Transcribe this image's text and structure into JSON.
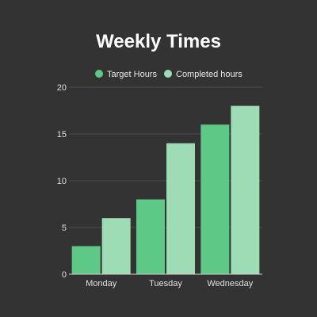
{
  "chart_data": {
    "type": "bar",
    "title": "Weekly Times",
    "categories": [
      "Monday",
      "Tuesday",
      "Wednesday"
    ],
    "series": [
      {
        "name": "Target Hours",
        "values": [
          3,
          8,
          16
        ],
        "color": "#5ec987"
      },
      {
        "name": "Completed hours",
        "values": [
          6,
          14,
          18
        ],
        "color": "#9ddcb5"
      }
    ],
    "yticks": [
      "0",
      "5",
      "10",
      "15",
      "20"
    ],
    "ylim": [
      0,
      20
    ],
    "grid": true,
    "legend": "top-center",
    "background": "#333333"
  }
}
